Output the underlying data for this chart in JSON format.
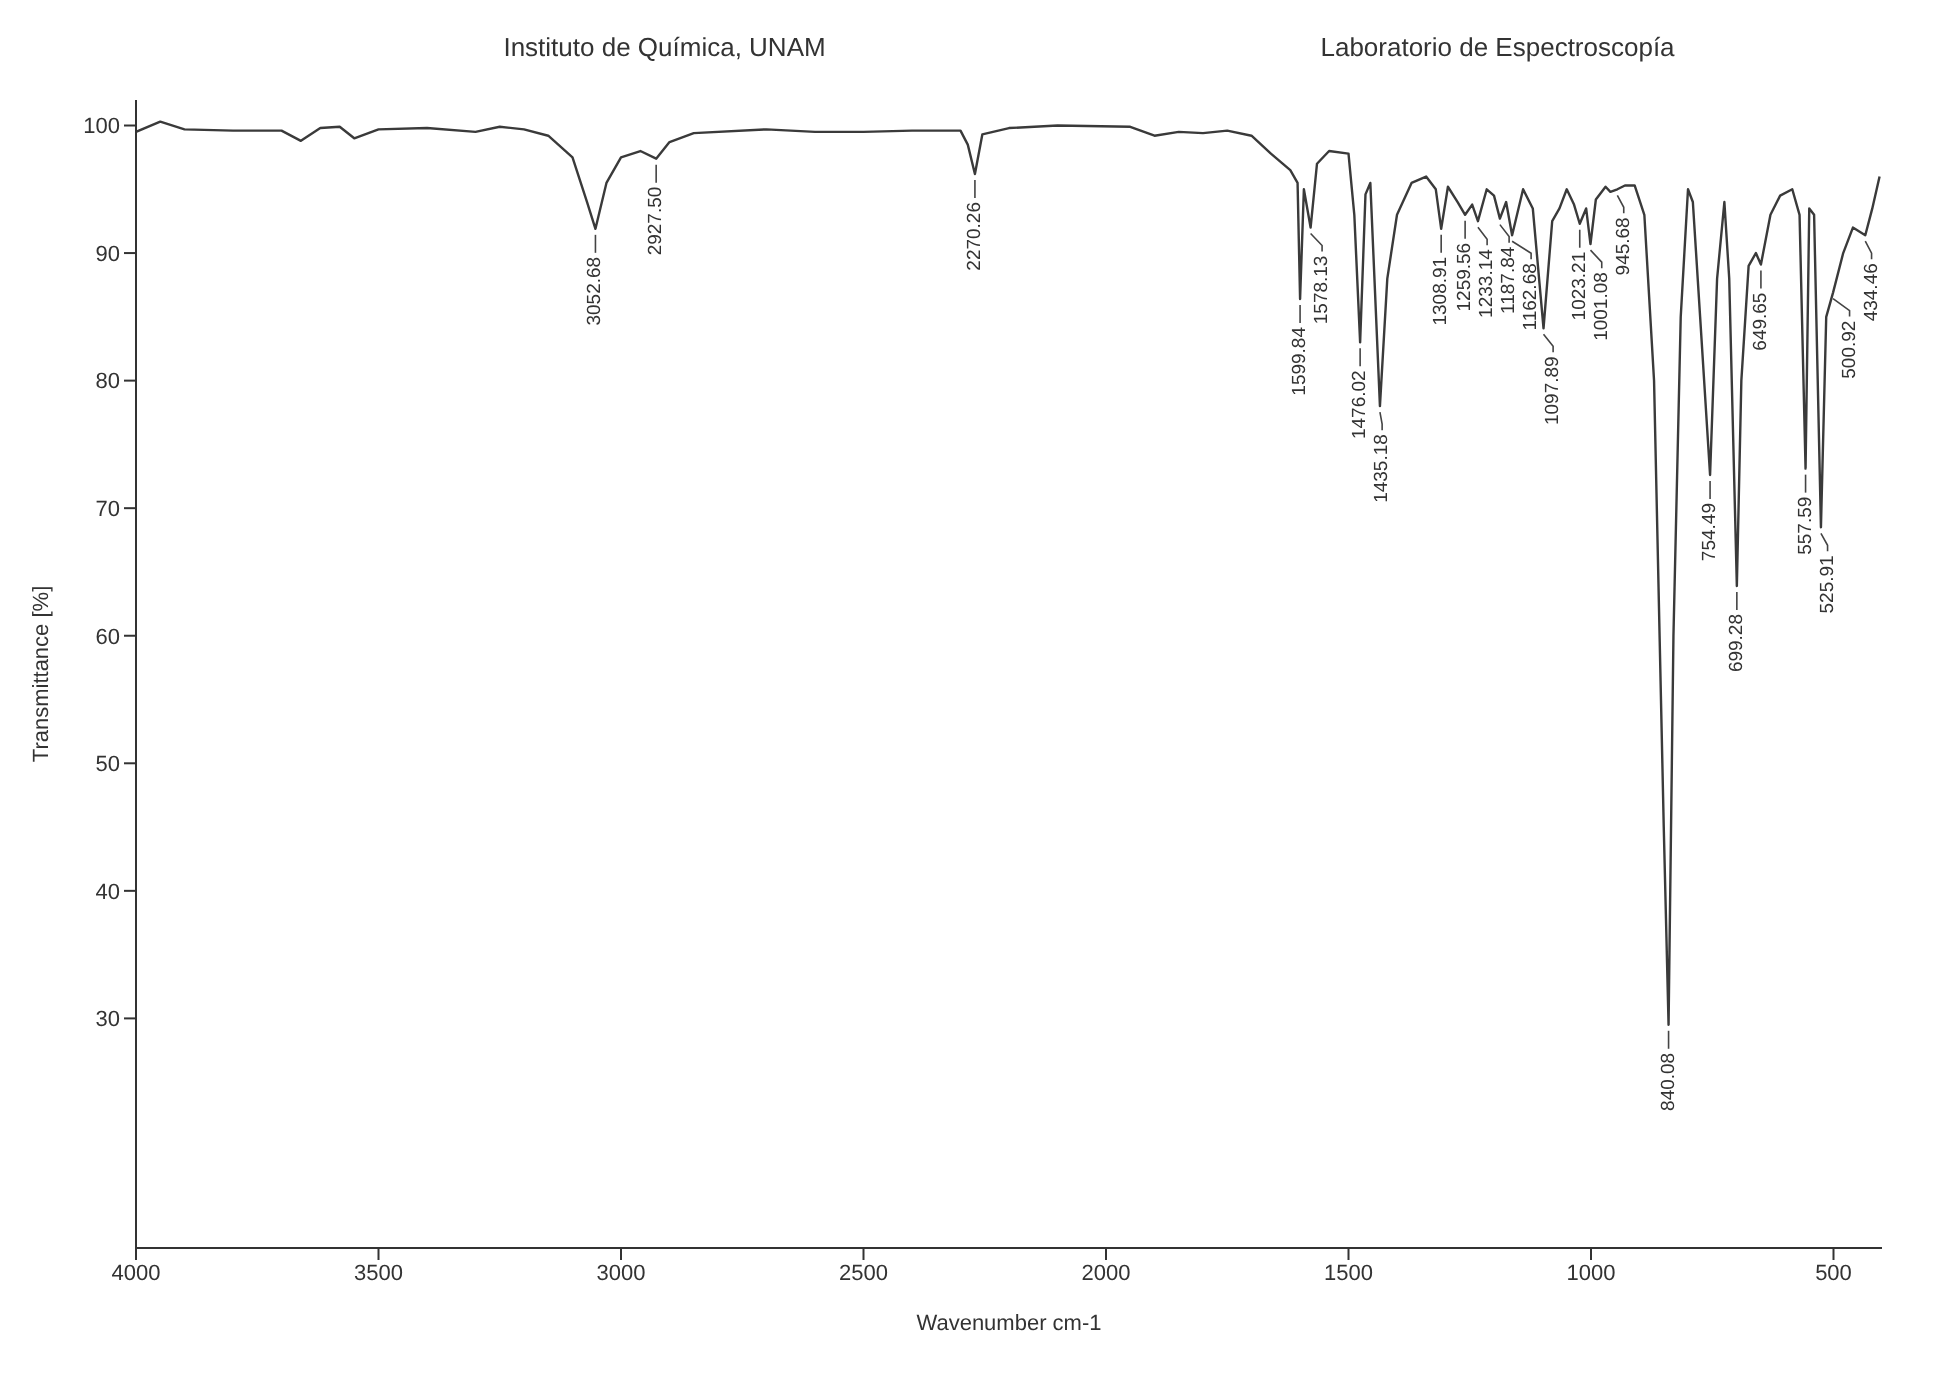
{
  "chart_data": {
    "type": "line",
    "xlabel": "Wavenumber cm-1",
    "ylabel": "Transmittance [%]",
    "color": "#3a3a3a",
    "xlim": [
      4000,
      400
    ],
    "xticks": [
      4000,
      3500,
      3000,
      2500,
      2000,
      1500,
      1000,
      500
    ],
    "ylim": [
      12,
      102
    ],
    "yticks": [
      30,
      40,
      50,
      60,
      70,
      80,
      90,
      100
    ],
    "x": [
      4000,
      3950,
      3900,
      3800,
      3700,
      3660,
      3620,
      3580,
      3550,
      3500,
      3400,
      3300,
      3250,
      3200,
      3150,
      3100,
      3070,
      3052.68,
      3030,
      3000,
      2960,
      2927.5,
      2900,
      2850,
      2700,
      2600,
      2500,
      2400,
      2300,
      2285,
      2270.26,
      2255,
      2200,
      2100,
      1950,
      1900,
      1850,
      1800,
      1750,
      1700,
      1660,
      1620,
      1605,
      1599.84,
      1592,
      1578.13,
      1565,
      1540,
      1500,
      1488,
      1476.02,
      1465,
      1455,
      1435.18,
      1420,
      1400,
      1370,
      1340,
      1320,
      1308.91,
      1295,
      1275,
      1259.56,
      1245,
      1233.14,
      1215,
      1200,
      1187.84,
      1175,
      1162.68,
      1140,
      1120,
      1097.89,
      1080,
      1065,
      1050,
      1035,
      1023.21,
      1010,
      1001.08,
      990,
      970,
      960,
      945.68,
      930,
      910,
      890,
      870,
      850,
      840.08,
      830,
      815,
      800,
      790,
      775,
      754.49,
      740,
      725,
      715,
      699.28,
      690,
      675,
      660,
      649.65,
      630,
      610,
      585,
      570,
      557.59,
      550,
      540,
      525.91,
      515,
      500.92,
      480,
      460,
      434.46,
      420,
      405
    ],
    "values": [
      99.5,
      100.3,
      99.7,
      99.6,
      99.6,
      98.8,
      99.8,
      99.9,
      99,
      99.7,
      99.8,
      99.5,
      99.9,
      99.7,
      99.2,
      97.5,
      94,
      91.9,
      95.5,
      97.5,
      98,
      97.4,
      98.7,
      99.4,
      99.7,
      99.5,
      99.5,
      99.6,
      99.6,
      98.5,
      96.2,
      99.3,
      99.8,
      100,
      99.9,
      99.2,
      99.5,
      99.4,
      99.6,
      99.2,
      97.8,
      96.5,
      95.5,
      86.4,
      95,
      92,
      97,
      98,
      97.8,
      93,
      83,
      94.6,
      95.5,
      78,
      88,
      93,
      95.5,
      96,
      95,
      91.9,
      95.2,
      94,
      93,
      93.8,
      92.5,
      95,
      94.5,
      92.7,
      94,
      91.4,
      95,
      93.5,
      84.1,
      92.5,
      93.5,
      95,
      93.8,
      92.3,
      93.5,
      90.7,
      94.2,
      95.2,
      94.8,
      95,
      95.3,
      95.3,
      93,
      80,
      45,
      29.5,
      60,
      85,
      95,
      94,
      85,
      72.6,
      88,
      94,
      88,
      63.9,
      80,
      89,
      90,
      89.1,
      93,
      94.5,
      95,
      93,
      73.1,
      93.5,
      93,
      68.5,
      85,
      86.9,
      90,
      92,
      91.4,
      93.5,
      96
    ],
    "annotations": [
      "Instituto de Química, UNAM",
      "Laboratorio de Espectroscopía",
      {
        "text": "3052.68",
        "x": 3052.68,
        "y": 91.9
      },
      {
        "text": "2927.50",
        "x": 2927.5,
        "y": 97.4
      },
      {
        "text": "2270.26",
        "x": 2270.26,
        "y": 96.2
      },
      {
        "text": "1599.84",
        "x": 1599.84,
        "y": 86.4
      },
      {
        "text": "1578.13",
        "x": 1578.13,
        "y": 92
      },
      {
        "text": "1476.02",
        "x": 1476.02,
        "y": 83
      },
      {
        "text": "1435.18",
        "x": 1435.18,
        "y": 78
      },
      {
        "text": "1308.91",
        "x": 1308.91,
        "y": 91.9
      },
      {
        "text": "1259.56",
        "x": 1259.56,
        "y": 93
      },
      {
        "text": "1233.14",
        "x": 1233.14,
        "y": 92.5
      },
      {
        "text": "1187.84",
        "x": 1187.84,
        "y": 92.7
      },
      {
        "text": "1162.68",
        "x": 1162.68,
        "y": 91.4
      },
      {
        "text": "1097.89",
        "x": 1097.89,
        "y": 84.1
      },
      {
        "text": "1023.21",
        "x": 1023.21,
        "y": 92.3
      },
      {
        "text": "1001.08",
        "x": 1001.08,
        "y": 90.7
      },
      {
        "text": "945.68",
        "x": 945.68,
        "y": 95
      },
      {
        "text": "840.08",
        "x": 840.08,
        "y": 29.5
      },
      {
        "text": "754.49",
        "x": 754.49,
        "y": 72.6
      },
      {
        "text": "699.28",
        "x": 699.28,
        "y": 63.9
      },
      {
        "text": "649.65",
        "x": 649.65,
        "y": 89.1
      },
      {
        "text": "557.59",
        "x": 557.59,
        "y": 73.1
      },
      {
        "text": "525.91",
        "x": 525.91,
        "y": 68.5
      },
      {
        "text": "500.92",
        "x": 500.92,
        "y": 86.9
      },
      {
        "text": "434.46",
        "x": 434.46,
        "y": 91.4
      }
    ]
  }
}
